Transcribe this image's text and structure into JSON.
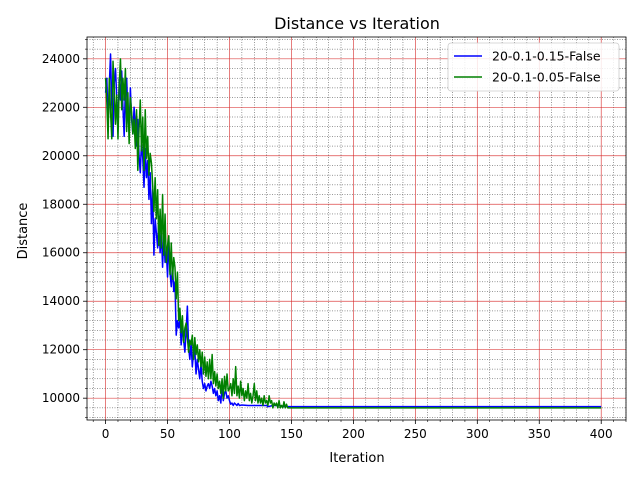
{
  "chart_data": {
    "type": "line",
    "title": "Distance vs Iteration",
    "xlabel": "Iteration",
    "ylabel": "Distance",
    "xlim": [
      -15,
      420
    ],
    "ylim": [
      9100,
      24900
    ],
    "xticks": [
      0,
      50,
      100,
      150,
      200,
      250,
      300,
      350,
      400
    ],
    "yticks": [
      10000,
      12000,
      14000,
      16000,
      18000,
      20000,
      22000,
      24000
    ],
    "x_minor_step": 10,
    "y_minor_step": 400,
    "grid": true,
    "major_grid_color": "#d62728",
    "minor_grid_color": "#000000",
    "legend_position": "upper right",
    "series": [
      {
        "name": "20-0.1-0.15-False",
        "color": "#0000ff",
        "points": [
          [
            0,
            22600
          ],
          [
            1,
            23200
          ],
          [
            2,
            21300
          ],
          [
            3,
            22900
          ],
          [
            4,
            24200
          ],
          [
            5,
            22100
          ],
          [
            6,
            20800
          ],
          [
            7,
            23000
          ],
          [
            8,
            23600
          ],
          [
            9,
            22400
          ],
          [
            10,
            21100
          ],
          [
            11,
            23200
          ],
          [
            12,
            22300
          ],
          [
            13,
            23500
          ],
          [
            14,
            22000
          ],
          [
            15,
            20800
          ],
          [
            16,
            22900
          ],
          [
            17,
            23200
          ],
          [
            18,
            21800
          ],
          [
            19,
            21000
          ],
          [
            20,
            22800
          ],
          [
            21,
            21500
          ],
          [
            22,
            20900
          ],
          [
            23,
            22000
          ],
          [
            24,
            21200
          ],
          [
            25,
            20400
          ],
          [
            26,
            21500
          ],
          [
            27,
            20000
          ],
          [
            28,
            19300
          ],
          [
            29,
            20600
          ],
          [
            30,
            19900
          ],
          [
            31,
            18700
          ],
          [
            32,
            20300
          ],
          [
            33,
            19100
          ],
          [
            34,
            19800
          ],
          [
            35,
            18200
          ],
          [
            36,
            19300
          ],
          [
            37,
            17200
          ],
          [
            38,
            18600
          ],
          [
            39,
            15900
          ],
          [
            40,
            17400
          ],
          [
            41,
            16800
          ],
          [
            42,
            16200
          ],
          [
            43,
            17500
          ],
          [
            44,
            16000
          ],
          [
            45,
            16900
          ],
          [
            46,
            15400
          ],
          [
            47,
            16800
          ],
          [
            48,
            15600
          ],
          [
            49,
            16100
          ],
          [
            50,
            15000
          ],
          [
            51,
            16500
          ],
          [
            52,
            15200
          ],
          [
            53,
            14600
          ],
          [
            54,
            15500
          ],
          [
            55,
            14400
          ],
          [
            56,
            14800
          ],
          [
            57,
            12600
          ],
          [
            58,
            13200
          ],
          [
            59,
            12900
          ],
          [
            60,
            13300
          ],
          [
            61,
            12200
          ],
          [
            62,
            13000
          ],
          [
            63,
            12400
          ],
          [
            64,
            11900
          ],
          [
            65,
            12800
          ],
          [
            66,
            13800
          ],
          [
            67,
            12100
          ],
          [
            68,
            11600
          ],
          [
            69,
            12300
          ],
          [
            70,
            11300
          ],
          [
            71,
            11900
          ],
          [
            72,
            12000
          ],
          [
            73,
            11000
          ],
          [
            74,
            11600
          ],
          [
            75,
            11200
          ],
          [
            76,
            10800
          ],
          [
            77,
            11400
          ],
          [
            78,
            10700
          ],
          [
            79,
            10400
          ],
          [
            80,
            10600
          ],
          [
            81,
            10300
          ],
          [
            82,
            10500
          ],
          [
            83,
            10600
          ],
          [
            84,
            10400
          ],
          [
            85,
            10700
          ],
          [
            86,
            10500
          ],
          [
            87,
            10200
          ],
          [
            88,
            10400
          ],
          [
            89,
            10100
          ],
          [
            90,
            10300
          ],
          [
            91,
            9900
          ],
          [
            92,
            10100
          ],
          [
            93,
            9800
          ],
          [
            94,
            10500
          ],
          [
            95,
            9900
          ],
          [
            96,
            10200
          ],
          [
            97,
            10300
          ],
          [
            98,
            10000
          ],
          [
            99,
            10100
          ],
          [
            100,
            9900
          ],
          [
            101,
            9750
          ],
          [
            102,
            9800
          ],
          [
            103,
            9700
          ],
          [
            104,
            9800
          ],
          [
            105,
            9750
          ],
          [
            106,
            9700
          ],
          [
            107,
            9780
          ],
          [
            108,
            9700
          ],
          [
            110,
            9720
          ],
          [
            115,
            9700
          ],
          [
            120,
            9700
          ],
          [
            125,
            9700
          ],
          [
            130,
            9700
          ],
          [
            131,
            9650
          ],
          [
            135,
            9700
          ],
          [
            140,
            9700
          ],
          [
            145,
            9650
          ],
          [
            150,
            9650
          ],
          [
            200,
            9650
          ],
          [
            250,
            9650
          ],
          [
            300,
            9650
          ],
          [
            350,
            9650
          ],
          [
            400,
            9650
          ]
        ]
      },
      {
        "name": "20-0.1-0.05-False",
        "color": "#008000",
        "points": [
          [
            0,
            23200
          ],
          [
            1,
            22200
          ],
          [
            2,
            20700
          ],
          [
            3,
            23200
          ],
          [
            4,
            21800
          ],
          [
            5,
            20700
          ],
          [
            6,
            23900
          ],
          [
            7,
            22700
          ],
          [
            8,
            21300
          ],
          [
            9,
            22500
          ],
          [
            10,
            20700
          ],
          [
            11,
            22900
          ],
          [
            12,
            24000
          ],
          [
            13,
            21900
          ],
          [
            14,
            23200
          ],
          [
            15,
            22300
          ],
          [
            16,
            23600
          ],
          [
            17,
            21000
          ],
          [
            18,
            22600
          ],
          [
            19,
            20500
          ],
          [
            20,
            22400
          ],
          [
            21,
            21800
          ],
          [
            22,
            20900
          ],
          [
            23,
            21500
          ],
          [
            24,
            20300
          ],
          [
            25,
            21900
          ],
          [
            26,
            19400
          ],
          [
            27,
            21100
          ],
          [
            28,
            22300
          ],
          [
            29,
            20200
          ],
          [
            30,
            21600
          ],
          [
            31,
            19400
          ],
          [
            32,
            21900
          ],
          [
            33,
            19900
          ],
          [
            34,
            20800
          ],
          [
            35,
            19200
          ],
          [
            36,
            20100
          ],
          [
            37,
            19700
          ],
          [
            38,
            18800
          ],
          [
            39,
            17700
          ],
          [
            40,
            19100
          ],
          [
            41,
            17400
          ],
          [
            42,
            18600
          ],
          [
            43,
            16300
          ],
          [
            44,
            17800
          ],
          [
            45,
            16200
          ],
          [
            46,
            18400
          ],
          [
            47,
            15900
          ],
          [
            48,
            17600
          ],
          [
            49,
            15600
          ],
          [
            50,
            16300
          ],
          [
            51,
            16700
          ],
          [
            52,
            15100
          ],
          [
            53,
            16400
          ],
          [
            54,
            14900
          ],
          [
            55,
            15800
          ],
          [
            56,
            15400
          ],
          [
            57,
            14100
          ],
          [
            58,
            15200
          ],
          [
            59,
            13200
          ],
          [
            60,
            13700
          ],
          [
            61,
            12700
          ],
          [
            62,
            13400
          ],
          [
            63,
            12300
          ],
          [
            64,
            12900
          ],
          [
            65,
            13100
          ],
          [
            66,
            12500
          ],
          [
            67,
            11900
          ],
          [
            68,
            12400
          ],
          [
            69,
            12200
          ],
          [
            70,
            12600
          ],
          [
            71,
            11600
          ],
          [
            72,
            12500
          ],
          [
            73,
            11800
          ],
          [
            74,
            12200
          ],
          [
            75,
            11500
          ],
          [
            76,
            12000
          ],
          [
            77,
            11300
          ],
          [
            78,
            11900
          ],
          [
            79,
            11000
          ],
          [
            80,
            11700
          ],
          [
            81,
            10900
          ],
          [
            82,
            11500
          ],
          [
            83,
            10800
          ],
          [
            84,
            11600
          ],
          [
            85,
            10800
          ],
          [
            86,
            11800
          ],
          [
            87,
            10600
          ],
          [
            88,
            11100
          ],
          [
            89,
            10500
          ],
          [
            90,
            11000
          ],
          [
            91,
            10400
          ],
          [
            92,
            10700
          ],
          [
            93,
            10200
          ],
          [
            94,
            10800
          ],
          [
            95,
            10000
          ],
          [
            96,
            10900
          ],
          [
            97,
            10300
          ],
          [
            98,
            11000
          ],
          [
            99,
            10300
          ],
          [
            100,
            10400
          ],
          [
            101,
            10600
          ],
          [
            102,
            10100
          ],
          [
            103,
            10800
          ],
          [
            104,
            10200
          ],
          [
            105,
            11300
          ],
          [
            106,
            10100
          ],
          [
            107,
            10500
          ],
          [
            108,
            10000
          ],
          [
            109,
            10700
          ],
          [
            110,
            10100
          ],
          [
            111,
            10400
          ],
          [
            112,
            9900
          ],
          [
            113,
            10300
          ],
          [
            114,
            10000
          ],
          [
            115,
            10600
          ],
          [
            116,
            9900
          ],
          [
            117,
            10200
          ],
          [
            118,
            9800
          ],
          [
            119,
            10100
          ],
          [
            120,
            10600
          ],
          [
            121,
            9900
          ],
          [
            122,
            10300
          ],
          [
            123,
            9800
          ],
          [
            124,
            10100
          ],
          [
            125,
            9800
          ],
          [
            126,
            10000
          ],
          [
            127,
            9700
          ],
          [
            128,
            10100
          ],
          [
            129,
            9800
          ],
          [
            130,
            9900
          ],
          [
            131,
            9700
          ],
          [
            132,
            10100
          ],
          [
            133,
            9800
          ],
          [
            134,
            9900
          ],
          [
            135,
            9600
          ],
          [
            136,
            9800
          ],
          [
            137,
            9700
          ],
          [
            138,
            9800
          ],
          [
            139,
            9600
          ],
          [
            140,
            9900
          ],
          [
            141,
            9600
          ],
          [
            142,
            9700
          ],
          [
            143,
            9600
          ],
          [
            144,
            9850
          ],
          [
            145,
            9600
          ],
          [
            146,
            9750
          ],
          [
            147,
            9600
          ],
          [
            148,
            9600
          ],
          [
            150,
            9600
          ],
          [
            200,
            9600
          ],
          [
            250,
            9600
          ],
          [
            300,
            9600
          ],
          [
            350,
            9600
          ],
          [
            400,
            9600
          ]
        ]
      }
    ]
  }
}
